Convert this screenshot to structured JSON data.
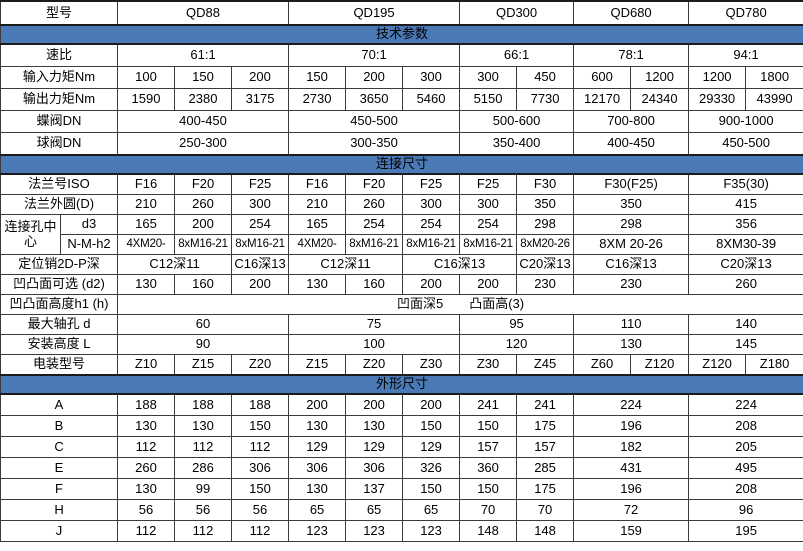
{
  "colors": {
    "section_header_bg": "#4a79b5",
    "grid_border": "#3b3b3b",
    "heavy_border": "#1b1b1b",
    "text": "#000000",
    "background": "#ffffff"
  },
  "models": [
    "QD88",
    "QD195",
    "QD300",
    "QD680",
    "QD780"
  ],
  "section_titles": [
    "技术参数",
    "连接尺寸",
    "外形尺寸"
  ],
  "table": {
    "rows": [
      {
        "kind": "header",
        "name": "model-header-row",
        "cells": [
          {
            "t": "型号",
            "s": 2,
            "label": true
          },
          {
            "t": "QD88",
            "s": 3
          },
          {
            "t": "QD195",
            "s": 3
          },
          {
            "t": "QD300",
            "s": 2
          },
          {
            "t": "QD680",
            "s": 2
          },
          {
            "t": "QD780",
            "s": 2
          }
        ]
      },
      {
        "kind": "section",
        "name": "section-row-tech-params",
        "cells": [
          {
            "t": "技术参数",
            "s": 14
          }
        ]
      },
      {
        "kind": "tech",
        "name": "row-speed-ratio",
        "cells": [
          {
            "t": "速比",
            "s": 2,
            "label": true
          },
          {
            "t": "61:1",
            "s": 3
          },
          {
            "t": "70:1",
            "s": 3
          },
          {
            "t": "66:1",
            "s": 2
          },
          {
            "t": "78:1",
            "s": 2
          },
          {
            "t": "94:1",
            "s": 2
          }
        ]
      },
      {
        "kind": "tech",
        "name": "row-input-torque",
        "cells": [
          {
            "t": "输入力矩Nm",
            "s": 2,
            "label": true
          },
          {
            "t": "100"
          },
          {
            "t": "150"
          },
          {
            "t": "200"
          },
          {
            "t": "150"
          },
          {
            "t": "200"
          },
          {
            "t": "300"
          },
          {
            "t": "300"
          },
          {
            "t": "450"
          },
          {
            "t": "600"
          },
          {
            "t": "1200"
          },
          {
            "t": "1200"
          },
          {
            "t": "1800"
          }
        ]
      },
      {
        "kind": "tech",
        "name": "row-output-torque",
        "cells": [
          {
            "t": "输出力矩Nm",
            "s": 2,
            "label": true
          },
          {
            "t": "1590"
          },
          {
            "t": "2380"
          },
          {
            "t": "3175"
          },
          {
            "t": "2730"
          },
          {
            "t": "3650"
          },
          {
            "t": "5460"
          },
          {
            "t": "5150"
          },
          {
            "t": "7730"
          },
          {
            "t": "12170"
          },
          {
            "t": "24340"
          },
          {
            "t": "29330"
          },
          {
            "t": "43990"
          }
        ]
      },
      {
        "kind": "tech",
        "name": "row-butterfly-valve-dn",
        "cells": [
          {
            "t": "蝶阀DN",
            "s": 2,
            "label": true
          },
          {
            "t": "400-450",
            "s": 3
          },
          {
            "t": "450-500",
            "s": 3
          },
          {
            "t": "500-600",
            "s": 2
          },
          {
            "t": "700-800",
            "s": 2
          },
          {
            "t": "900-1000",
            "s": 2
          }
        ]
      },
      {
        "kind": "tech",
        "name": "row-ball-valve-dn",
        "cells": [
          {
            "t": "球阀DN",
            "s": 2,
            "label": true
          },
          {
            "t": "250-300",
            "s": 3
          },
          {
            "t": "300-350",
            "s": 3
          },
          {
            "t": "350-400",
            "s": 2
          },
          {
            "t": "400-450",
            "s": 2
          },
          {
            "t": "450-500",
            "s": 2
          }
        ]
      },
      {
        "kind": "section",
        "name": "section-row-connection-size",
        "cells": [
          {
            "t": "连接尺寸",
            "s": 14
          }
        ]
      },
      {
        "kind": "conn",
        "name": "row-flange-iso",
        "cells": [
          {
            "t": "法兰号ISO",
            "s": 2,
            "label": true
          },
          {
            "t": "F16"
          },
          {
            "t": "F20"
          },
          {
            "t": "F25"
          },
          {
            "t": "F16"
          },
          {
            "t": "F20"
          },
          {
            "t": "F25"
          },
          {
            "t": "F25"
          },
          {
            "t": "F30"
          },
          {
            "t": "F30(F25)",
            "s": 2
          },
          {
            "t": "F35(30)",
            "s": 2
          }
        ]
      },
      {
        "kind": "conn",
        "name": "row-flange-outer-d",
        "cells": [
          {
            "t": "法兰外圆(D)",
            "s": 2,
            "label": true
          },
          {
            "t": "210"
          },
          {
            "t": "260"
          },
          {
            "t": "300"
          },
          {
            "t": "210"
          },
          {
            "t": "260"
          },
          {
            "t": "300"
          },
          {
            "t": "300"
          },
          {
            "t": "350"
          },
          {
            "t": "350",
            "s": 2
          },
          {
            "t": "415",
            "s": 2
          }
        ]
      },
      {
        "kind": "conn",
        "name": "row-bolt-circle-d3",
        "cells": [
          {
            "t": "连接孔中心",
            "r": 2,
            "label": true,
            "wrap": true
          },
          {
            "t": "d3",
            "label": true
          },
          {
            "t": "165"
          },
          {
            "t": "200"
          },
          {
            "t": "254"
          },
          {
            "t": "165"
          },
          {
            "t": "254"
          },
          {
            "t": "254"
          },
          {
            "t": "254"
          },
          {
            "t": "298"
          },
          {
            "t": "298",
            "s": 2
          },
          {
            "t": "356",
            "s": 2
          }
        ]
      },
      {
        "kind": "conn",
        "name": "row-n-m-h2",
        "cells": [
          {
            "t": "N-M-h2",
            "label": true
          },
          {
            "t": "4XM20-",
            "small": true
          },
          {
            "t": "8xM16-21",
            "small": true
          },
          {
            "t": "8xM16-21",
            "small": true
          },
          {
            "t": "4XM20-",
            "small": true
          },
          {
            "t": "8xM16-21",
            "small": true
          },
          {
            "t": "8xM16-21",
            "small": true
          },
          {
            "t": "8xM16-21",
            "small": true
          },
          {
            "t": "8xM20-26",
            "small": true
          },
          {
            "t": "8XM 20-26",
            "s": 2
          },
          {
            "t": "8XM30-39",
            "s": 2
          }
        ]
      },
      {
        "kind": "conn",
        "name": "row-locating-pin",
        "cells": [
          {
            "t": "定位销2D-P深",
            "s": 2,
            "label": true
          },
          {
            "t": "C12深11",
            "s": 2
          },
          {
            "t": "C16深13"
          },
          {
            "t": "C12深11",
            "s": 2
          },
          {
            "t": "C16深13",
            "s": 2
          },
          {
            "t": "C20深13"
          },
          {
            "t": "C16深13",
            "s": 2
          },
          {
            "t": "C20深13",
            "s": 2
          }
        ]
      },
      {
        "kind": "conn",
        "name": "row-spigot-d2",
        "cells": [
          {
            "t": "凹凸面可选 (d2)",
            "s": 2,
            "label": true
          },
          {
            "t": "130"
          },
          {
            "t": "160"
          },
          {
            "t": "200"
          },
          {
            "t": "130"
          },
          {
            "t": "160"
          },
          {
            "t": "200"
          },
          {
            "t": "200"
          },
          {
            "t": "230"
          },
          {
            "t": "230",
            "s": 2
          },
          {
            "t": "260",
            "s": 2
          }
        ]
      },
      {
        "kind": "conn",
        "name": "row-spigot-height-h1",
        "cells": [
          {
            "t": "凹凸面高度h1 (h)",
            "s": 2,
            "label": true
          },
          {
            "t": "凹面深5　　凸面高(3)",
            "s": 12
          }
        ]
      },
      {
        "kind": "conn",
        "name": "row-max-shaft-bore",
        "cells": [
          {
            "t": "最大轴孔 d",
            "s": 2,
            "label": true
          },
          {
            "t": "60",
            "s": 3
          },
          {
            "t": "75",
            "s": 3
          },
          {
            "t": "95",
            "s": 2
          },
          {
            "t": "110",
            "s": 2
          },
          {
            "t": "140",
            "s": 2
          }
        ]
      },
      {
        "kind": "conn",
        "name": "row-mounting-height",
        "cells": [
          {
            "t": "安装高度 L",
            "s": 2,
            "label": true
          },
          {
            "t": "90",
            "s": 3
          },
          {
            "t": "100",
            "s": 3
          },
          {
            "t": "120",
            "s": 2
          },
          {
            "t": "130",
            "s": 2
          },
          {
            "t": "145",
            "s": 2
          }
        ]
      },
      {
        "kind": "conn",
        "name": "row-actuator-model",
        "cells": [
          {
            "t": "电装型号",
            "s": 2,
            "label": true
          },
          {
            "t": "Z10"
          },
          {
            "t": "Z15"
          },
          {
            "t": "Z20"
          },
          {
            "t": "Z15"
          },
          {
            "t": "Z20"
          },
          {
            "t": "Z30"
          },
          {
            "t": "Z30"
          },
          {
            "t": "Z45"
          },
          {
            "t": "Z60"
          },
          {
            "t": "Z120"
          },
          {
            "t": "Z120"
          },
          {
            "t": "Z180"
          }
        ]
      },
      {
        "kind": "section",
        "name": "section-row-outline-dims",
        "cells": [
          {
            "t": "外形尺寸",
            "s": 14
          }
        ]
      },
      {
        "kind": "shape",
        "name": "row-dim-a",
        "cells": [
          {
            "t": "A",
            "s": 2,
            "label": true
          },
          {
            "t": "188"
          },
          {
            "t": "188"
          },
          {
            "t": "188"
          },
          {
            "t": "200"
          },
          {
            "t": "200"
          },
          {
            "t": "200"
          },
          {
            "t": "241"
          },
          {
            "t": "241"
          },
          {
            "t": "224",
            "s": 2
          },
          {
            "t": "224",
            "s": 2
          }
        ]
      },
      {
        "kind": "shape",
        "name": "row-dim-b",
        "cells": [
          {
            "t": "B",
            "s": 2,
            "label": true
          },
          {
            "t": "130"
          },
          {
            "t": "130"
          },
          {
            "t": "150"
          },
          {
            "t": "130"
          },
          {
            "t": "130"
          },
          {
            "t": "150"
          },
          {
            "t": "150"
          },
          {
            "t": "175"
          },
          {
            "t": "196",
            "s": 2
          },
          {
            "t": "208",
            "s": 2
          }
        ]
      },
      {
        "kind": "shape",
        "name": "row-dim-c",
        "cells": [
          {
            "t": "C",
            "s": 2,
            "label": true
          },
          {
            "t": "112"
          },
          {
            "t": "112"
          },
          {
            "t": "112"
          },
          {
            "t": "129"
          },
          {
            "t": "129"
          },
          {
            "t": "129"
          },
          {
            "t": "157"
          },
          {
            "t": "157"
          },
          {
            "t": "182",
            "s": 2
          },
          {
            "t": "205",
            "s": 2
          }
        ]
      },
      {
        "kind": "shape",
        "name": "row-dim-e",
        "cells": [
          {
            "t": "E",
            "s": 2,
            "label": true
          },
          {
            "t": "260"
          },
          {
            "t": "286"
          },
          {
            "t": "306"
          },
          {
            "t": "306"
          },
          {
            "t": "306"
          },
          {
            "t": "326"
          },
          {
            "t": "360"
          },
          {
            "t": "285"
          },
          {
            "t": "431",
            "s": 2
          },
          {
            "t": "495",
            "s": 2
          }
        ]
      },
      {
        "kind": "shape",
        "name": "row-dim-f",
        "cells": [
          {
            "t": "F",
            "s": 2,
            "label": true
          },
          {
            "t": "130"
          },
          {
            "t": "99"
          },
          {
            "t": "150"
          },
          {
            "t": "130"
          },
          {
            "t": "137"
          },
          {
            "t": "150"
          },
          {
            "t": "150"
          },
          {
            "t": "175"
          },
          {
            "t": "196",
            "s": 2
          },
          {
            "t": "208",
            "s": 2
          }
        ]
      },
      {
        "kind": "shape",
        "name": "row-dim-h",
        "cells": [
          {
            "t": "H",
            "s": 2,
            "label": true
          },
          {
            "t": "56"
          },
          {
            "t": "56"
          },
          {
            "t": "56"
          },
          {
            "t": "65"
          },
          {
            "t": "65"
          },
          {
            "t": "65"
          },
          {
            "t": "70"
          },
          {
            "t": "70"
          },
          {
            "t": "72",
            "s": 2
          },
          {
            "t": "96",
            "s": 2
          }
        ]
      },
      {
        "kind": "shape",
        "name": "row-dim-j",
        "cells": [
          {
            "t": "J",
            "s": 2,
            "label": true
          },
          {
            "t": "112"
          },
          {
            "t": "112"
          },
          {
            "t": "112"
          },
          {
            "t": "123"
          },
          {
            "t": "123"
          },
          {
            "t": "123"
          },
          {
            "t": "148"
          },
          {
            "t": "148"
          },
          {
            "t": "159",
            "s": 2
          },
          {
            "t": "195",
            "s": 2
          }
        ]
      }
    ]
  }
}
